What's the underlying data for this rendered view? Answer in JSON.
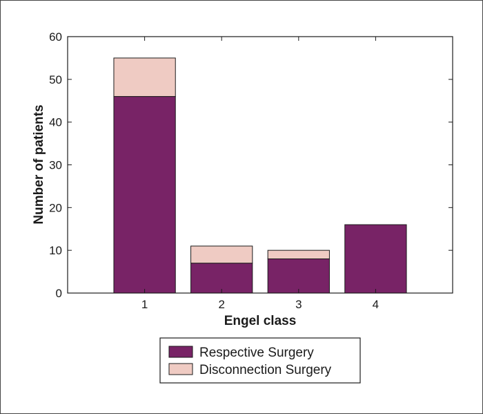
{
  "chart_data": {
    "type": "bar",
    "stacked": true,
    "categories": [
      "1",
      "2",
      "3",
      "4"
    ],
    "series": [
      {
        "name": "Respective Surgery",
        "values": [
          46,
          7,
          8,
          16
        ],
        "color": "#782366"
      },
      {
        "name": "Disconnection Surgery",
        "values": [
          9,
          4,
          2,
          0
        ],
        "color": "#efcbc3"
      }
    ],
    "xlabel": "Engel class",
    "ylabel": "Number of patients",
    "ylim": [
      0,
      60
    ],
    "yticks": [
      "0",
      "10",
      "20",
      "30",
      "40",
      "50",
      "60"
    ],
    "xlim": [
      0,
      5
    ],
    "grid": false,
    "legend_position": "bottom"
  }
}
